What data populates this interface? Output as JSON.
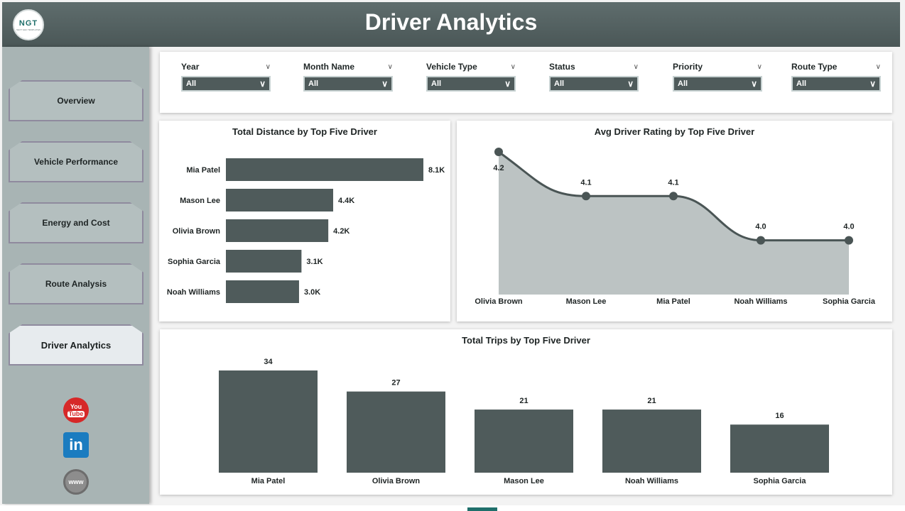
{
  "header": {
    "title": "Driver Analytics",
    "logo_text": "NGT",
    "logo_sub": "NEXT GEN TEMPLATES"
  },
  "sidebar": {
    "items": [
      {
        "label": "Overview",
        "active": false
      },
      {
        "label": "Vehicle Performance",
        "active": false
      },
      {
        "label": "Energy and Cost",
        "active": false
      },
      {
        "label": "Route Analysis",
        "active": false
      },
      {
        "label": "Driver Analytics",
        "active": true
      }
    ],
    "social": {
      "youtube_top": "You",
      "youtube_bottom": "Tube",
      "linkedin": "in",
      "website": "www"
    }
  },
  "filters": [
    {
      "label": "Year",
      "value": "All"
    },
    {
      "label": "Month Name",
      "value": "All"
    },
    {
      "label": "Vehicle Type",
      "value": "All"
    },
    {
      "label": "Status",
      "value": "All"
    },
    {
      "label": "Priority",
      "value": "All"
    },
    {
      "label": "Route Type",
      "value": "All"
    }
  ],
  "colors": {
    "bar": "#4f5b5b",
    "area": "#bcc3c3",
    "line": "#4a5555",
    "header": "#56636363",
    "accent": "#1f6f6b"
  },
  "chart_data": [
    {
      "type": "bar",
      "orientation": "horizontal",
      "title": "Total Distance by Top Five Driver",
      "categories": [
        "Mia Patel",
        "Mason Lee",
        "Olivia Brown",
        "Sophia Garcia",
        "Noah Williams"
      ],
      "values": [
        8100,
        4400,
        4200,
        3100,
        3000
      ],
      "data_labels": [
        "8.1K",
        "4.4K",
        "4.2K",
        "3.1K",
        "3.0K"
      ],
      "xlim": [
        0,
        8100
      ]
    },
    {
      "type": "area",
      "title": "Avg Driver Rating by Top Five Driver",
      "categories": [
        "Olivia Brown",
        "Mason Lee",
        "Mia Patel",
        "Noah Williams",
        "Sophia Garcia"
      ],
      "values": [
        4.2,
        4.1,
        4.1,
        4.0,
        4.0
      ],
      "data_labels": [
        "4.2",
        "4.1",
        "4.1",
        "4.0",
        "4.0"
      ]
    },
    {
      "type": "bar",
      "orientation": "vertical",
      "title": "Total Trips by Top Five Driver",
      "categories": [
        "Mia Patel",
        "Olivia Brown",
        "Mason Lee",
        "Noah Williams",
        "Sophia Garcia"
      ],
      "values": [
        34,
        27,
        21,
        21,
        16
      ],
      "ylim": [
        0,
        34
      ]
    }
  ]
}
